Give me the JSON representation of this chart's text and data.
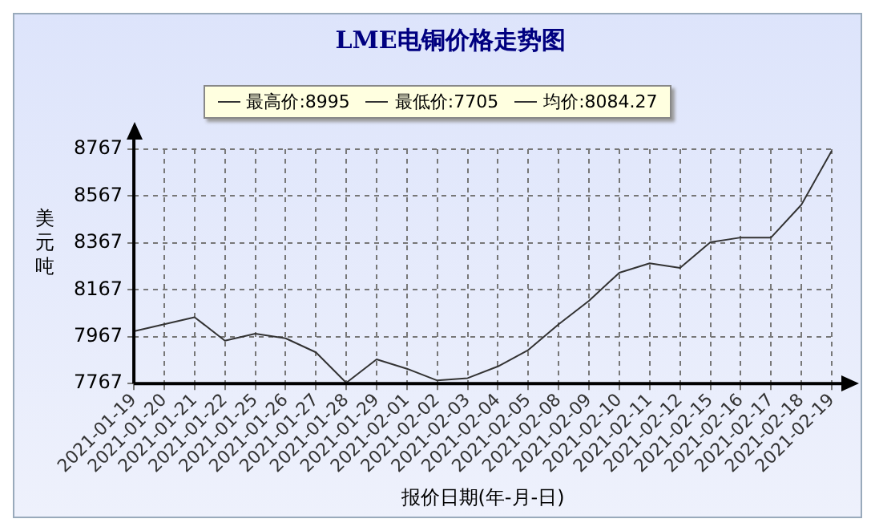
{
  "chart_data": {
    "type": "line",
    "title": "LME电铜价格走势图",
    "xlabel": "报价日期(年-月-日)",
    "ylabel": "美元吨",
    "annotations": [
      "最高价:8995",
      "最低价:7705",
      "均价:8084.27"
    ],
    "categories": [
      "2021-01-19",
      "2021-01-20",
      "2021-01-21",
      "2021-01-22",
      "2021-01-25",
      "2021-01-26",
      "2021-01-27",
      "2021-01-28",
      "2021-01-29",
      "2021-02-01",
      "2021-02-02",
      "2021-02-03",
      "2021-02-04",
      "2021-02-05",
      "2021-02-08",
      "2021-02-09",
      "2021-02-10",
      "2021-02-11",
      "2021-02-12",
      "2021-02-15",
      "2021-02-16",
      "2021-02-17",
      "2021-02-18",
      "2021-02-19"
    ],
    "series": [
      {
        "color": "#333333",
        "values": [
          7990,
          8020,
          8050,
          7950,
          7980,
          7960,
          7900,
          7770,
          7870,
          7830,
          7780,
          7790,
          7840,
          7910,
          8020,
          8120,
          8240,
          8280,
          8260,
          8370,
          8390,
          8390,
          8530,
          8760
        ]
      }
    ],
    "ylim": [
      7767,
      8767
    ],
    "yticks": [
      7767,
      7967,
      8167,
      8367,
      8567,
      8767
    ],
    "grid": true,
    "marker": "none",
    "line_style": "solid"
  }
}
